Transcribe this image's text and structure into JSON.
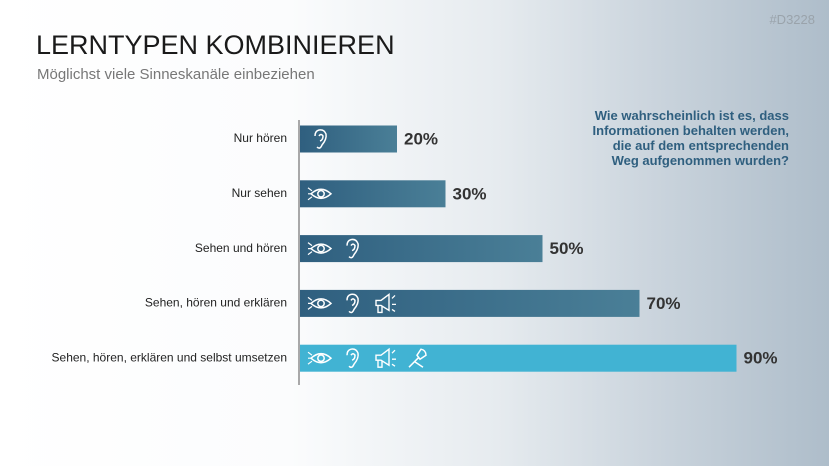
{
  "chart_data": {
    "type": "bar",
    "orientation": "horizontal",
    "title": "LERNTYPEN KOMBINIEREN",
    "subtitle": "Möglichst viele Sinneskanäle einbeziehen",
    "code": "#D3228",
    "annotation": "Wie wahrscheinlich ist es, dass Informationen behalten werden, die auf dem entsprechenden Weg aufgenommen wurden?",
    "categories": [
      "Nur hören",
      "Nur sehen",
      "Sehen und hören",
      "Sehen, hören und erklären",
      "Sehen, hören, erklären und selbst umsetzen"
    ],
    "values": [
      20,
      30,
      50,
      70,
      90
    ],
    "value_labels": [
      "20%",
      "30%",
      "50%",
      "70%",
      "90%"
    ],
    "colors": [
      "#2f5f7f",
      "#2f5f7f",
      "#2f5f7f",
      "#2f5f7f",
      "#41b3d3"
    ],
    "xlim": [
      0,
      100
    ]
  }
}
